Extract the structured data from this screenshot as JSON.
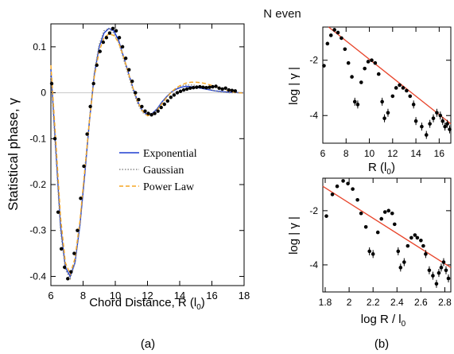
{
  "figure_title": "N even",
  "panel_labels": [
    "(a)",
    "(b)"
  ],
  "chart_data": [
    {
      "type": "line",
      "xlabel": "Chord Distance, R (l",
      "xlabel_sub": "0",
      "xlabel_tail": ")",
      "ylabel": "Statistical phase, γ",
      "xlim": [
        6,
        18
      ],
      "ylim": [
        -0.42,
        0.15
      ],
      "xticks": [
        6,
        8,
        10,
        12,
        14,
        16,
        18
      ],
      "xtick_labels": [
        "6",
        "8",
        "10",
        "12",
        "14",
        "16",
        "18"
      ],
      "yticks": [
        -0.4,
        -0.3,
        -0.2,
        -0.1,
        0,
        0.1
      ],
      "ytick_labels": [
        "-0.4",
        "-0.3",
        "-0.2",
        "-0.1",
        "0",
        "0.1"
      ],
      "legend_position": "middle-right",
      "series": [
        {
          "name": "Exponential",
          "color": "#1f3fd0",
          "dash": "solid",
          "x": [
            6.0,
            6.3,
            6.6,
            6.9,
            7.2,
            7.5,
            7.8,
            8.1,
            8.4,
            8.7,
            9.0,
            9.3,
            9.6,
            9.9,
            10.2,
            10.5,
            10.8,
            11.1,
            11.4,
            11.7,
            12.0,
            12.3,
            12.6,
            12.9,
            13.2,
            13.5,
            13.8,
            14.1,
            14.4,
            14.7,
            15.0,
            15.3,
            15.6,
            15.9,
            16.2,
            16.5,
            16.8,
            17.1,
            17.4,
            17.7,
            18.0
          ],
          "y": [
            0.05,
            -0.12,
            -0.29,
            -0.38,
            -0.4,
            -0.37,
            -0.29,
            -0.18,
            -0.06,
            0.04,
            0.1,
            0.13,
            0.14,
            0.135,
            0.115,
            0.08,
            0.045,
            0.01,
            -0.02,
            -0.04,
            -0.048,
            -0.045,
            -0.035,
            -0.02,
            -0.008,
            0.002,
            0.008,
            0.012,
            0.014,
            0.013,
            0.012,
            0.01,
            0.008,
            0.006,
            0.004,
            0.003,
            0.002,
            0.001,
            0.001,
            0.0,
            0.0
          ]
        },
        {
          "name": "Gaussian",
          "color": "#8a8a8a",
          "dash": "dotted",
          "x": [
            6.0,
            6.3,
            6.6,
            6.9,
            7.2,
            7.5,
            7.8,
            8.1,
            8.4,
            8.7,
            9.0,
            9.3,
            9.6,
            9.9,
            10.2,
            10.5,
            10.8,
            11.1,
            11.4,
            11.7,
            12.0,
            12.3,
            12.6,
            12.9,
            13.2,
            13.5,
            13.8,
            14.1,
            14.4,
            14.7,
            15.0,
            15.3,
            15.6,
            15.9,
            16.2,
            16.5,
            16.8,
            17.1,
            17.4,
            17.7,
            18.0
          ],
          "y": [
            0.04,
            -0.13,
            -0.3,
            -0.385,
            -0.405,
            -0.37,
            -0.285,
            -0.17,
            -0.055,
            0.045,
            0.105,
            0.135,
            0.14,
            0.13,
            0.11,
            0.075,
            0.04,
            0.005,
            -0.025,
            -0.043,
            -0.05,
            -0.046,
            -0.036,
            -0.022,
            -0.009,
            0.002,
            0.01,
            0.015,
            0.017,
            0.017,
            0.016,
            0.013,
            0.01,
            0.007,
            0.004,
            0.002,
            0.001,
            0.0,
            0.0,
            0.0,
            0.0
          ]
        },
        {
          "name": "Power Law",
          "color": "#f5a623",
          "dash": "dashed",
          "x": [
            6.0,
            6.3,
            6.6,
            6.9,
            7.2,
            7.5,
            7.8,
            8.1,
            8.4,
            8.7,
            9.0,
            9.3,
            9.6,
            9.9,
            10.2,
            10.5,
            10.8,
            11.1,
            11.4,
            11.7,
            12.0,
            12.3,
            12.6,
            12.9,
            13.2,
            13.5,
            13.8,
            14.1,
            14.4,
            14.7,
            15.0,
            15.3,
            15.6,
            15.9,
            16.2,
            16.5,
            16.8,
            17.1,
            17.4,
            17.7,
            18.0
          ],
          "y": [
            0.06,
            -0.1,
            -0.27,
            -0.37,
            -0.395,
            -0.36,
            -0.28,
            -0.17,
            -0.06,
            0.035,
            0.09,
            0.12,
            0.128,
            0.125,
            0.11,
            0.08,
            0.045,
            0.01,
            -0.02,
            -0.04,
            -0.05,
            -0.048,
            -0.038,
            -0.024,
            -0.01,
            0.002,
            0.011,
            0.017,
            0.021,
            0.023,
            0.023,
            0.022,
            0.02,
            0.017,
            0.014,
            0.01,
            0.006,
            0.003,
            0.001,
            0.0,
            -0.001
          ]
        },
        {
          "name": "data",
          "color": "#000000",
          "dash": "points",
          "x": [
            6.05,
            6.25,
            6.45,
            6.65,
            6.85,
            7.05,
            7.25,
            7.45,
            7.65,
            7.85,
            8.05,
            8.25,
            8.45,
            8.65,
            8.85,
            9.05,
            9.25,
            9.45,
            9.65,
            9.85,
            10.05,
            10.25,
            10.45,
            10.65,
            10.85,
            11.05,
            11.25,
            11.45,
            11.65,
            11.85,
            12.05,
            12.25,
            12.45,
            12.65,
            12.85,
            13.05,
            13.25,
            13.45,
            13.65,
            13.85,
            14.05,
            14.25,
            14.45,
            14.65,
            14.85,
            15.05,
            15.25,
            15.45,
            15.65,
            15.85,
            16.05,
            16.25,
            16.45,
            16.65,
            16.85,
            17.05,
            17.25,
            17.45
          ],
          "y": [
            0.02,
            -0.1,
            -0.26,
            -0.34,
            -0.38,
            -0.405,
            -0.39,
            -0.35,
            -0.3,
            -0.23,
            -0.16,
            -0.09,
            -0.03,
            0.02,
            0.06,
            0.09,
            0.11,
            0.12,
            0.13,
            0.14,
            0.135,
            0.12,
            0.1,
            0.075,
            0.05,
            0.025,
            0.0,
            -0.015,
            -0.03,
            -0.04,
            -0.045,
            -0.048,
            -0.045,
            -0.04,
            -0.032,
            -0.025,
            -0.018,
            -0.01,
            -0.005,
            0.0,
            0.003,
            0.006,
            0.008,
            0.01,
            0.011,
            0.012,
            0.013,
            0.012,
            0.011,
            0.012,
            0.013,
            0.014,
            0.01,
            0.008,
            0.01,
            0.006,
            0.005,
            0.004
          ]
        }
      ]
    },
    {
      "type": "scatter",
      "xlabel": "R (l",
      "xlabel_sub": "0",
      "xlabel_tail": ")",
      "ylabel": "log | γ |",
      "xlim": [
        6,
        17
      ],
      "ylim": [
        -5,
        -0.8
      ],
      "xticks": [
        6,
        8,
        10,
        12,
        14,
        16
      ],
      "xtick_labels": [
        "6",
        "8",
        "10",
        "12",
        "14",
        "16"
      ],
      "yticks": [
        -4,
        -2
      ],
      "ytick_labels": [
        "-4",
        "-2"
      ],
      "fit_line": {
        "color": "#e8442a",
        "x": [
          6.5,
          17.0
        ],
        "y": [
          -0.8,
          -4.3
        ]
      },
      "points": {
        "x": [
          6.1,
          6.4,
          6.7,
          7.0,
          7.3,
          7.6,
          7.9,
          8.2,
          8.5,
          8.75,
          9.0,
          9.3,
          9.6,
          9.9,
          10.2,
          10.5,
          10.8,
          11.1,
          11.3,
          11.6,
          12.0,
          12.3,
          12.6,
          12.9,
          13.2,
          13.5,
          13.8,
          14.0,
          14.5,
          14.9,
          15.2,
          15.5,
          15.8,
          16.1,
          16.3,
          16.5,
          16.7,
          16.9
        ],
        "y": [
          -2.2,
          -1.4,
          -1.1,
          -0.9,
          -1.0,
          -1.2,
          -1.6,
          -2.1,
          -2.6,
          -3.5,
          -3.6,
          -2.8,
          -2.3,
          -2.05,
          -2.0,
          -2.1,
          -2.5,
          -3.5,
          -4.1,
          -3.9,
          -3.3,
          -3.0,
          -2.9,
          -3.0,
          -3.1,
          -3.3,
          -3.6,
          -4.2,
          -4.4,
          -4.7,
          -4.3,
          -4.1,
          -3.9,
          -4.0,
          -4.2,
          -4.4,
          -4.3,
          -4.5
        ]
      }
    },
    {
      "type": "scatter",
      "xlabel": "log R / l",
      "xlabel_sub": "0",
      "xlabel_tail": "",
      "ylabel": "log | γ |",
      "xlim": [
        1.78,
        2.85
      ],
      "ylim": [
        -5,
        -0.8
      ],
      "xticks": [
        1.8,
        2,
        2.2,
        2.4,
        2.6,
        2.8
      ],
      "xtick_labels": [
        "1.8",
        "2",
        "2.2",
        "2.4",
        "2.6",
        "2.8"
      ],
      "yticks": [
        -4,
        -2
      ],
      "ytick_labels": [
        "-4",
        "-2"
      ],
      "fit_line": {
        "color": "#e8442a",
        "x": [
          1.78,
          2.85
        ],
        "y": [
          -1.1,
          -4.1
        ]
      },
      "points": {
        "x": [
          1.81,
          1.86,
          1.9,
          1.95,
          1.99,
          2.03,
          2.07,
          2.1,
          2.14,
          2.17,
          2.2,
          2.24,
          2.27,
          2.3,
          2.33,
          2.36,
          2.38,
          2.41,
          2.43,
          2.46,
          2.49,
          2.52,
          2.55,
          2.57,
          2.6,
          2.62,
          2.64,
          2.67,
          2.7,
          2.73,
          2.75,
          2.77,
          2.79,
          2.81,
          2.83
        ],
        "y": [
          -2.2,
          -1.4,
          -1.1,
          -0.9,
          -1.0,
          -1.2,
          -1.6,
          -2.1,
          -2.6,
          -3.5,
          -3.6,
          -2.8,
          -2.3,
          -2.05,
          -2.0,
          -2.1,
          -2.5,
          -3.5,
          -4.1,
          -3.9,
          -3.3,
          -3.0,
          -2.9,
          -3.0,
          -3.1,
          -3.3,
          -3.6,
          -4.2,
          -4.4,
          -4.7,
          -4.3,
          -4.1,
          -3.9,
          -4.2,
          -4.5
        ]
      }
    }
  ]
}
